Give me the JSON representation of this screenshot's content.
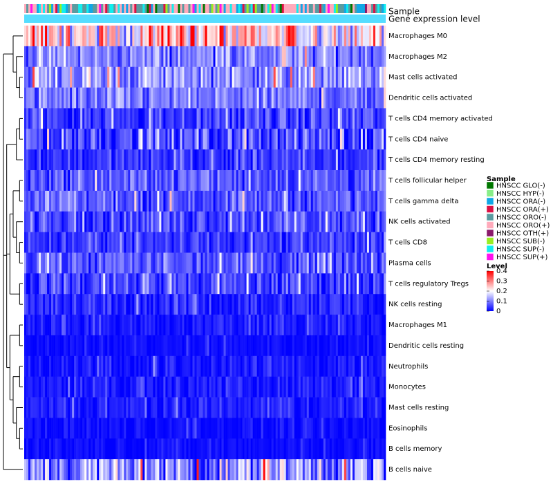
{
  "chart_data": {
    "type": "heatmap",
    "title": "",
    "annotation_tracks": [
      "Sample",
      "Gene expression level"
    ],
    "rows": [
      "Macrophages M0",
      "Macrophages M2",
      "Mast cells activated",
      "Dendritic cells activated",
      "T cells CD4 memory activated",
      "T cells CD4 naive",
      "T cells CD4 memory resting",
      "T cells follicular helper",
      "T cells gamma delta",
      "NK cells activated",
      "T cells CD8",
      "Plasma cells",
      "T cells regulatory  Tregs",
      "NK cells resting",
      "Macrophages M1",
      "Dendritic cells resting",
      "Neutrophils",
      "Monocytes",
      "Mast cells resting",
      "Eosinophils",
      "B cells memory",
      "B cells naive"
    ],
    "row_mean_level": [
      0.22,
      0.1,
      0.12,
      0.09,
      0.05,
      0.06,
      0.04,
      0.07,
      0.07,
      0.06,
      0.04,
      0.07,
      0.05,
      0.03,
      0.02,
      0.01,
      0.02,
      0.02,
      0.02,
      0.01,
      0.01,
      0.11
    ],
    "row_variability": [
      0.11,
      0.06,
      0.07,
      0.06,
      0.05,
      0.07,
      0.04,
      0.05,
      0.05,
      0.05,
      0.04,
      0.05,
      0.05,
      0.04,
      0.025,
      0.015,
      0.03,
      0.025,
      0.025,
      0.02,
      0.015,
      0.1
    ],
    "n_samples": 174,
    "sample_legend": {
      "title": "Sample",
      "entries": [
        {
          "label": "HNSCC GLO(-)",
          "color": "#007700"
        },
        {
          "label": "HNSCC HYP(-)",
          "color": "#88ee88"
        },
        {
          "label": "HNSCC ORA(-)",
          "color": "#11a7e6"
        },
        {
          "label": "HNSCC ORA(+)",
          "color": "#dd1144"
        },
        {
          "label": "HNSCC ORO(-)",
          "color": "#5a9ba0"
        },
        {
          "label": "HNSCC ORO(+)",
          "color": "#ffaabb"
        },
        {
          "label": "HNSCC OTH(+)",
          "color": "#8b1a6b"
        },
        {
          "label": "HNSCC SUB(-)",
          "color": "#99ee22"
        },
        {
          "label": "HNSCC SUP(-)",
          "color": "#11eeee"
        },
        {
          "label": "HNSCC SUP(+)",
          "color": "#ff11ee"
        }
      ],
      "weights": [
        2,
        1,
        5,
        2,
        8,
        10,
        1,
        1,
        5,
        2
      ]
    },
    "expression_level_color": "#55ddff",
    "level_legend": {
      "title": "Level",
      "ticks": [
        "0.4",
        "0.3",
        "0.2",
        "0.1",
        "0"
      ],
      "tick_values": [
        0.4,
        0.3,
        0.2,
        0.1,
        0
      ],
      "range": [
        0,
        0.4
      ],
      "colors": {
        "low": "#0000ff",
        "mid": "#ffffff",
        "high": "#ff0000",
        "mid_value": 0.2
      }
    },
    "dendrogram_tree": [
      [
        0,
        [
          1,
          [
            2,
            3
          ]
        ]
      ],
      [
        [
          [
            4,
            5
          ],
          6
        ],
        [
          [
            [
              7,
              8
            ],
            [
              9,
              [
                10,
                11
              ]
            ]
          ],
          [
            12,
            13
          ]
        ],
        [
          [
            14,
            15
          ],
          [
            [
              16,
              17
            ],
            [
              18,
              [
                19,
                20
              ]
            ]
          ]
        ]
      ],
      21
    ]
  }
}
